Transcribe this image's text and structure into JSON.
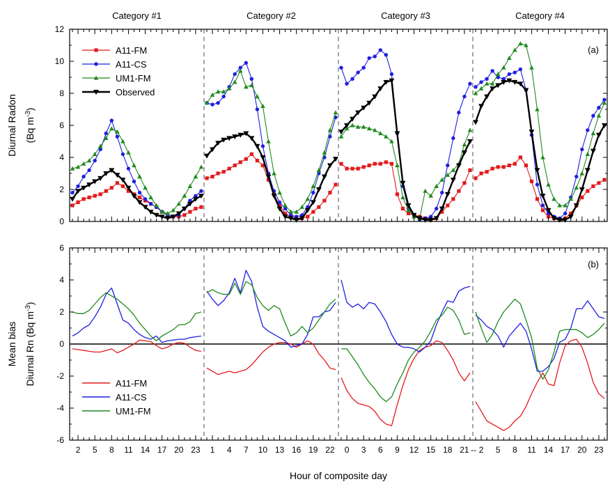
{
  "colors": {
    "A11-FM": "#e31a1c",
    "A11-CS": "#1f1fe0",
    "UM1-FM": "#1f8a1f",
    "Observed": "#000000",
    "separator": "#888888"
  },
  "chart_data": [
    {
      "type": "line",
      "panel_label": "(a)",
      "categories": [
        "Category #1",
        "Category #2",
        "Category #3",
        "Category #4"
      ],
      "ylabel_line1": "Diurnal Radon",
      "ylabel_line2": "(Bq m",
      "ylabel_sup": "-3",
      "ylabel_close": ")",
      "ylim": [
        0,
        12
      ],
      "yticks": [
        0,
        2,
        4,
        6,
        8,
        10,
        12
      ],
      "legend_position": "top-left",
      "points_per_category": 24,
      "series": [
        {
          "name": "A11-FM",
          "marker": "square",
          "values": [
            [
              1.0,
              1.2,
              1.4,
              1.5,
              1.6,
              1.7,
              1.9,
              2.1,
              2.4,
              2.2,
              1.9,
              1.7,
              1.5,
              1.3,
              1.1,
              0.9,
              0.6,
              0.4,
              0.3,
              0.3,
              0.4,
              0.6,
              0.8,
              0.9
            ],
            [
              2.7,
              2.8,
              3.0,
              3.1,
              3.3,
              3.5,
              3.7,
              3.9,
              4.2,
              3.8,
              3.5,
              2.6,
              1.7,
              1.0,
              0.5,
              0.3,
              0.2,
              0.2,
              0.3,
              0.6,
              0.9,
              1.3,
              1.8,
              2.3
            ],
            [
              3.6,
              3.3,
              3.3,
              3.3,
              3.4,
              3.5,
              3.6,
              3.6,
              3.7,
              3.6,
              1.7,
              0.8,
              0.5,
              0.4,
              0.3,
              0.2,
              0.1,
              0.2,
              0.6,
              1.0,
              1.4,
              1.9,
              2.4,
              3.2
            ],
            [
              2.7,
              3.0,
              3.1,
              3.3,
              3.4,
              3.4,
              3.5,
              3.6,
              4.0,
              3.5,
              2.5,
              1.4,
              0.7,
              0.3,
              0.2,
              0.1,
              0.2,
              0.5,
              1.0,
              1.5,
              1.9,
              2.2,
              2.4,
              2.6
            ]
          ]
        },
        {
          "name": "A11-CS",
          "marker": "circle",
          "values": [
            [
              1.8,
              2.2,
              2.8,
              3.2,
              3.8,
              4.5,
              5.5,
              6.3,
              5.3,
              4.2,
              3.3,
              2.5,
              1.8,
              1.4,
              1.1,
              0.9,
              0.6,
              0.4,
              0.3,
              0.4,
              0.8,
              1.3,
              1.6,
              1.9
            ],
            [
              7.4,
              7.3,
              7.4,
              7.8,
              8.4,
              9.2,
              9.6,
              9.9,
              8.9,
              7.0,
              4.7,
              3.0,
              1.9,
              1.2,
              0.8,
              0.4,
              0.3,
              0.4,
              0.9,
              1.8,
              3.0,
              4.0,
              5.3,
              6.5
            ],
            [
              9.6,
              8.6,
              8.9,
              9.3,
              9.6,
              10.2,
              10.3,
              10.7,
              10.4,
              9.2,
              5.5,
              2.2,
              0.8,
              0.4,
              0.1,
              0.2,
              0.3,
              0.8,
              1.8,
              3.5,
              5.2,
              6.8,
              7.8,
              8.6
            ],
            [
              8.4,
              8.7,
              8.9,
              9.4,
              9.0,
              8.9,
              9.2,
              9.3,
              9.5,
              8.2,
              5.4,
              2.3,
              1.0,
              0.5,
              0.3,
              0.2,
              0.5,
              1.5,
              2.8,
              4.5,
              5.7,
              6.6,
              7.1,
              7.6
            ]
          ]
        },
        {
          "name": "UM1-FM",
          "marker": "triangle",
          "values": [
            [
              3.3,
              3.4,
              3.6,
              3.8,
              4.2,
              4.7,
              5.2,
              5.8,
              5.6,
              5.0,
              4.3,
              3.5,
              2.8,
              2.1,
              1.5,
              1.0,
              0.6,
              0.5,
              0.7,
              1.1,
              1.6,
              2.2,
              2.8,
              3.4
            ],
            [
              7.4,
              7.9,
              8.1,
              8.1,
              8.3,
              8.7,
              9.4,
              8.4,
              8.5,
              7.8,
              7.2,
              5.0,
              3.0,
              1.8,
              1.0,
              0.6,
              0.6,
              0.9,
              1.4,
              2.2,
              3.2,
              4.3,
              5.7,
              6.8
            ],
            [
              5.3,
              5.8,
              6.0,
              5.9,
              5.9,
              5.8,
              5.7,
              5.5,
              5.3,
              5.0,
              3.5,
              1.5,
              0.7,
              0.3,
              0.2,
              1.9,
              1.6,
              2.2,
              2.6,
              2.9,
              3.2,
              3.6,
              4.8,
              5.7
            ],
            [
              8.0,
              8.3,
              8.6,
              8.6,
              9.2,
              9.6,
              10.2,
              10.7,
              11.1,
              11.0,
              9.6,
              7.0,
              4.0,
              2.3,
              1.4,
              1.0,
              1.0,
              1.4,
              2.1,
              3.0,
              4.2,
              5.5,
              6.6,
              7.4
            ]
          ]
        },
        {
          "name": "Observed",
          "marker": "triangle-down",
          "values": [
            [
              1.4,
              1.9,
              2.1,
              2.3,
              2.5,
              2.7,
              3.0,
              3.2,
              2.9,
              2.6,
              2.1,
              1.6,
              1.2,
              0.9,
              0.6,
              0.4,
              0.3,
              0.2,
              0.3,
              0.5,
              0.8,
              1.1,
              1.4,
              1.6
            ],
            [
              4.1,
              4.5,
              4.9,
              5.1,
              5.2,
              5.3,
              5.4,
              5.5,
              5.2,
              4.7,
              4.0,
              2.8,
              1.6,
              0.8,
              0.3,
              0.2,
              0.1,
              0.2,
              0.7,
              1.2,
              2.0,
              2.8,
              3.5,
              3.9
            ],
            [
              5.6,
              6.0,
              6.4,
              6.8,
              7.1,
              7.4,
              7.8,
              8.3,
              8.7,
              8.8,
              5.5,
              2.4,
              1.0,
              0.4,
              0.2,
              0.1,
              0.1,
              0.2,
              0.8,
              1.7,
              2.6,
              3.5,
              4.3,
              5.0
            ],
            [
              6.2,
              7.2,
              7.8,
              8.3,
              8.5,
              8.7,
              8.8,
              8.7,
              8.6,
              8.2,
              5.6,
              3.2,
              1.6,
              0.7,
              0.2,
              0.1,
              0.1,
              0.3,
              1.0,
              2.0,
              3.2,
              4.4,
              5.4,
              6.0
            ]
          ]
        }
      ]
    },
    {
      "type": "line",
      "panel_label": "(b)",
      "ylabel_line1": "Mean bias",
      "ylabel_line2": "Diurnal Rn (Bq m",
      "ylabel_sup": "-3",
      "ylabel_close": ")",
      "ylim": [
        -6,
        6
      ],
      "yticks": [
        -6,
        -4,
        -2,
        0,
        2,
        4,
        6
      ],
      "zero_line": true,
      "legend_position": "bottom-left",
      "xlabel": "Hour of composite day",
      "xtick_labels": [
        [
          "2",
          "5",
          "8",
          "11",
          "14",
          "17",
          "20",
          "23"
        ],
        [
          "1",
          "4",
          "7",
          "10",
          "13",
          "16",
          "19",
          "22"
        ],
        [
          "0",
          "3",
          "6",
          "9",
          "12",
          "15",
          "18",
          "21"
        ],
        [
          "--",
          "2",
          "5",
          "8",
          "11",
          "14",
          "17",
          "20",
          "23"
        ]
      ],
      "series": [
        {
          "name": "A11-FM",
          "values": [
            [
              -0.3,
              -0.35,
              -0.4,
              -0.45,
              -0.5,
              -0.5,
              -0.4,
              -0.3,
              -0.55,
              -0.4,
              -0.2,
              0.0,
              0.25,
              0.2,
              0.15,
              -0.1,
              -0.3,
              -0.2,
              0.0,
              0.1,
              0.05,
              -0.2,
              -0.4,
              -0.45
            ],
            [
              -1.5,
              -1.7,
              -1.9,
              -1.8,
              -1.7,
              -1.8,
              -1.7,
              -1.6,
              -1.3,
              -0.9,
              -0.5,
              -0.2,
              0.0,
              0.1,
              0.1,
              0.0,
              -0.2,
              0.0,
              0.2,
              0.0,
              -0.6,
              -1.0,
              -1.5,
              -1.6
            ],
            [
              -2.1,
              -2.9,
              -3.4,
              -3.7,
              -3.8,
              -3.9,
              -4.2,
              -4.7,
              -5.0,
              -5.1,
              -3.8,
              -2.6,
              -1.6,
              -0.9,
              -0.4,
              -0.2,
              -0.1,
              0.2,
              0.1,
              -0.4,
              -1.0,
              -1.8,
              -2.3,
              -1.8
            ],
            [
              -3.6,
              -4.2,
              -4.8,
              -5.0,
              -5.2,
              -5.4,
              -5.2,
              -4.8,
              -4.5,
              -3.9,
              -3.1,
              -2.4,
              -1.8,
              -2.5,
              -2.6,
              -1.2,
              -0.1,
              0.2,
              0.3,
              -0.2,
              -1.2,
              -2.4,
              -3.1,
              -3.4
            ]
          ]
        },
        {
          "name": "A11-CS",
          "values": [
            [
              0.5,
              0.7,
              1.0,
              1.2,
              1.7,
              2.3,
              3.1,
              3.5,
              2.5,
              1.5,
              1.3,
              0.9,
              0.6,
              0.4,
              0.3,
              0.5,
              0.1,
              0.2,
              0.25,
              0.3,
              0.3,
              0.4,
              0.45,
              0.5
            ],
            [
              3.3,
              2.8,
              2.4,
              2.7,
              3.2,
              4.1,
              3.2,
              4.6,
              3.9,
              2.3,
              1.1,
              0.8,
              0.6,
              0.4,
              0.2,
              -0.2,
              -0.1,
              0.0,
              0.6,
              1.7,
              1.7,
              2.0,
              2.1,
              2.6
            ],
            [
              4.0,
              2.6,
              2.3,
              2.5,
              2.2,
              2.6,
              2.5,
              2.0,
              1.4,
              0.6,
              0.0,
              -0.2,
              -0.2,
              -0.3,
              -0.5,
              -0.2,
              0.2,
              1.2,
              2.0,
              2.7,
              2.6,
              3.3,
              3.5,
              3.6
            ],
            [
              1.8,
              1.5,
              1.1,
              0.9,
              0.5,
              -0.2,
              0.5,
              0.9,
              1.3,
              0.8,
              -0.3,
              -1.7,
              -1.7,
              -1.4,
              -0.9,
              0.1,
              0.3,
              1.0,
              2.2,
              2.2,
              2.7,
              2.2,
              1.7,
              1.6
            ]
          ]
        },
        {
          "name": "UM1-FM",
          "values": [
            [
              2.0,
              1.9,
              1.9,
              2.1,
              2.5,
              2.9,
              3.2,
              3.0,
              2.8,
              2.5,
              2.2,
              1.8,
              1.3,
              0.9,
              0.5,
              0.2,
              0.5,
              0.7,
              0.9,
              1.2,
              1.2,
              1.4,
              1.9,
              2.0
            ],
            [
              3.2,
              3.4,
              3.2,
              3.1,
              3.1,
              3.8,
              3.1,
              3.9,
              3.7,
              2.9,
              2.4,
              2.1,
              2.4,
              2.2,
              1.3,
              0.5,
              0.7,
              1.1,
              0.7,
              1.0,
              1.5,
              2.0,
              2.5,
              2.8
            ],
            [
              -0.3,
              -0.3,
              -0.8,
              -1.3,
              -1.9,
              -2.4,
              -2.8,
              -3.3,
              -3.6,
              -3.3,
              -2.5,
              -1.8,
              -1.0,
              -0.5,
              -0.2,
              0.2,
              0.8,
              1.5,
              1.8,
              2.3,
              2.1,
              1.5,
              0.6,
              0.7
            ],
            [
              2.0,
              1.0,
              0.1,
              0.6,
              1.4,
              2.0,
              2.4,
              2.8,
              2.5,
              1.5,
              0.4,
              -1.5,
              -2.2,
              -1.6,
              -0.5,
              0.8,
              0.9,
              0.9,
              0.9,
              0.7,
              0.4,
              0.6,
              0.9,
              1.3
            ]
          ]
        }
      ]
    }
  ]
}
